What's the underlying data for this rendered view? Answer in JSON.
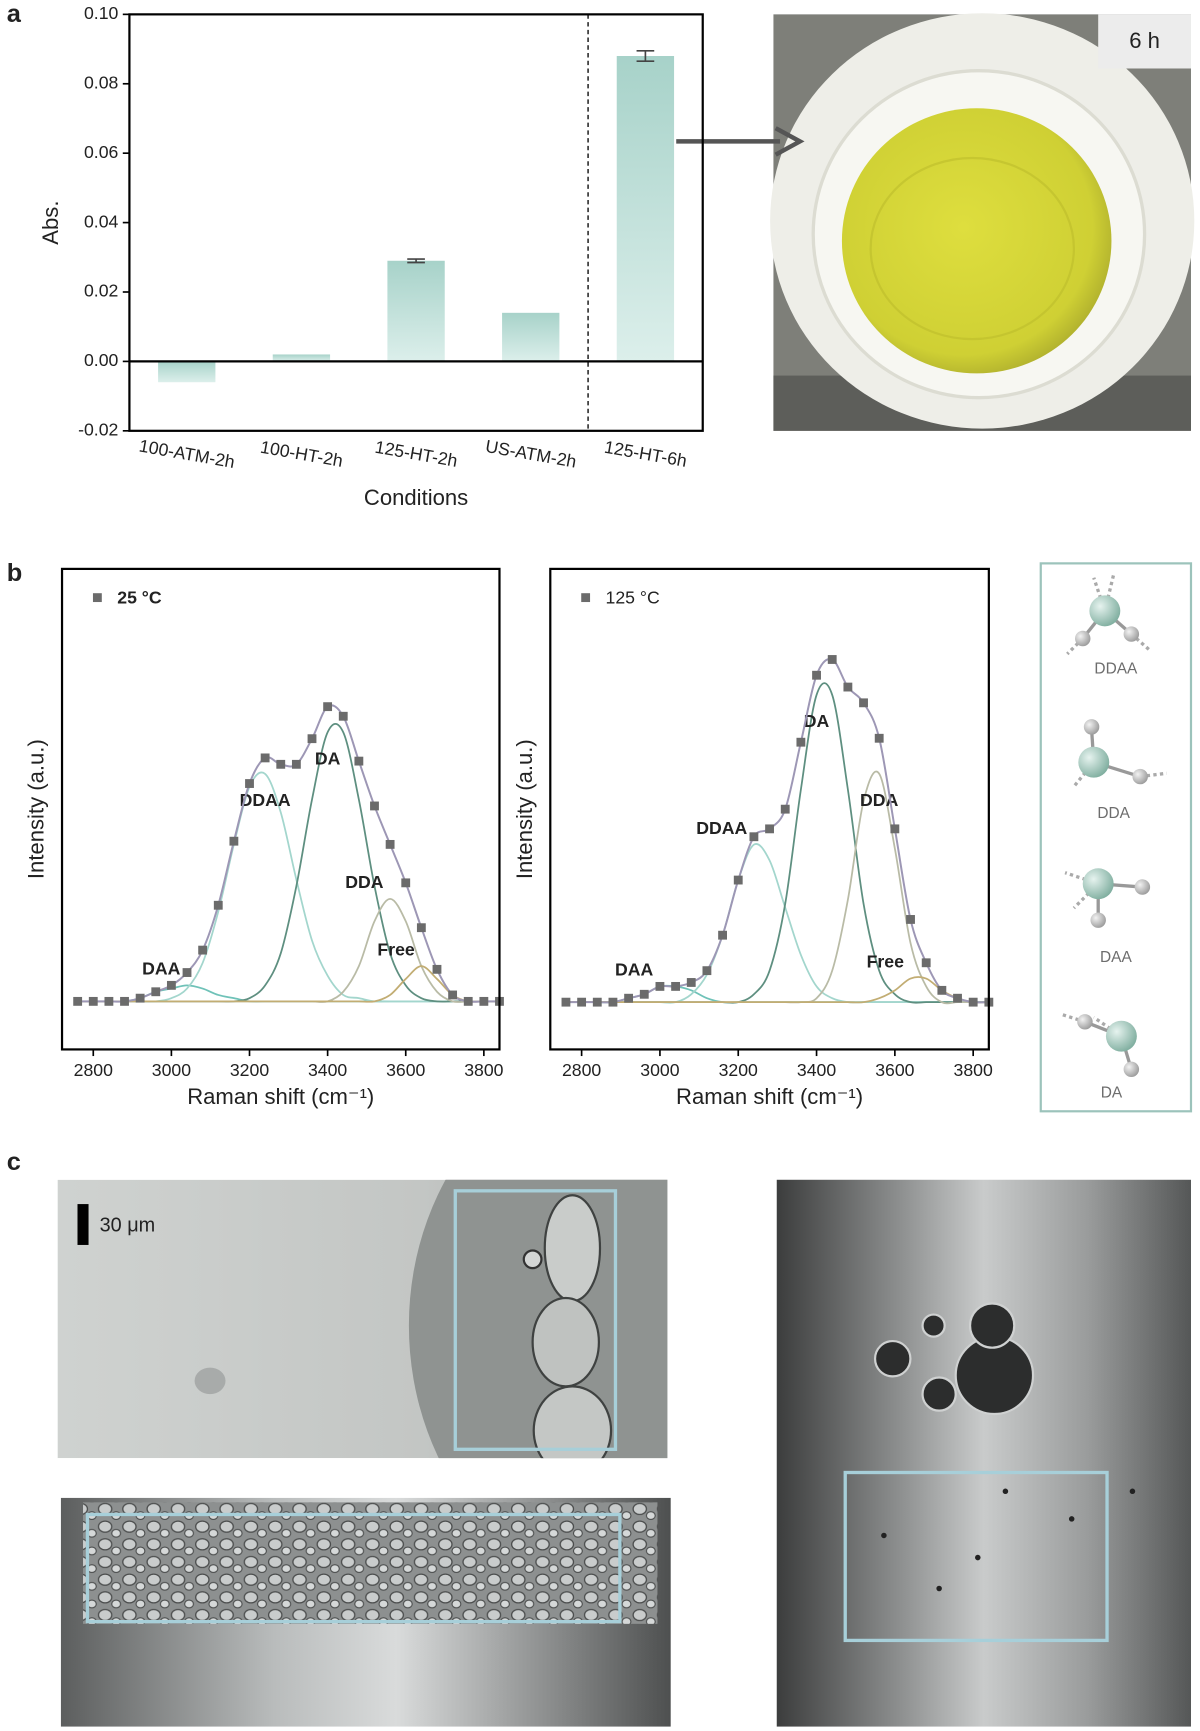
{
  "panel_labels": [
    "a",
    "b",
    "c"
  ],
  "chart_data": [
    {
      "type": "bar",
      "xlabel": "Conditions",
      "ylabel": "Abs.",
      "categories": [
        "100-ATM-2h",
        "100-HT-2h",
        "125-HT-2h",
        "US-ATM-2h",
        "125-HT-6h"
      ],
      "values": [
        -0.006,
        0.002,
        0.029,
        0.014,
        0.088
      ],
      "errors": [
        null,
        null,
        0.0005,
        null,
        0.0015
      ],
      "color": "#b9ddd6",
      "ylim": [
        -0.02,
        0.1
      ],
      "yticks": [
        -0.02,
        {
          "value": 0,
          "label": "0.00"
        },
        0.02,
        0.04,
        0.06,
        0.08,
        {
          "value": 0.1,
          "label": "0.10"
        }
      ]
    },
    {
      "type": "line",
      "xlabel": "Raman shift (cm⁻¹)",
      "ylabel": "Intensity (a.u.)",
      "x": [
        2760,
        2800,
        2840,
        2880,
        2920,
        2960,
        3000,
        3040,
        3080,
        3120,
        3160,
        3200,
        3240,
        3280,
        3320,
        3360,
        3400,
        3440,
        3480,
        3520,
        3560,
        3600,
        3640,
        3680,
        3720,
        3760,
        3800,
        3840
      ],
      "xlim": [
        2720,
        3840
      ],
      "xticks": [
        2800,
        3000,
        3200,
        3400,
        3600,
        3800
      ],
      "ylim": [
        -0.15,
        1.35
      ],
      "series": [
        {
          "name": "25 °C",
          "color": "#6b6b6b",
          "values": [
            0,
            0,
            0,
            0,
            0.01,
            0.03,
            0.05,
            0.09,
            0.16,
            0.3,
            0.5,
            0.68,
            0.76,
            0.74,
            0.74,
            0.82,
            0.92,
            0.89,
            0.75,
            0.61,
            0.49,
            0.37,
            0.23,
            0.1,
            0.02,
            0,
            0,
            0
          ]
        },
        {
          "name": "DAA",
          "color": "#6fc2b8",
          "values": [
            0,
            0,
            0,
            0,
            0.01,
            0.03,
            0.04,
            0.05,
            0.04,
            0.02,
            0.01,
            0,
            0,
            0,
            0,
            0,
            0,
            0,
            0,
            0,
            0,
            0,
            0,
            0,
            0,
            0,
            0,
            0
          ]
        },
        {
          "name": "DDAA",
          "color": "#a3d6cd",
          "values": [
            0,
            0,
            0,
            0,
            0,
            0,
            0.01,
            0.04,
            0.12,
            0.28,
            0.49,
            0.67,
            0.71,
            0.59,
            0.38,
            0.19,
            0.08,
            0.02,
            0.01,
            0,
            0,
            0,
            0,
            0,
            0,
            0,
            0,
            0
          ]
        },
        {
          "name": "DA",
          "color": "#5e8f80",
          "values": [
            0,
            0,
            0,
            0,
            0,
            0,
            0,
            0,
            0,
            0,
            0,
            0.01,
            0.05,
            0.15,
            0.36,
            0.63,
            0.84,
            0.84,
            0.63,
            0.36,
            0.15,
            0.05,
            0.01,
            0,
            0,
            0,
            0,
            0
          ]
        },
        {
          "name": "DDA",
          "color": "#b9bba6",
          "values": [
            0,
            0,
            0,
            0,
            0,
            0,
            0,
            0,
            0,
            0,
            0,
            0,
            0,
            0,
            0,
            0,
            0,
            0.03,
            0.11,
            0.25,
            0.32,
            0.25,
            0.11,
            0.03,
            0,
            0,
            0,
            0
          ]
        },
        {
          "name": "Free",
          "color": "#c2ad73",
          "values": [
            0,
            0,
            0,
            0,
            0,
            0,
            0,
            0,
            0,
            0,
            0,
            0,
            0,
            0,
            0,
            0,
            0,
            0,
            0,
            0,
            0.02,
            0.07,
            0.11,
            0.07,
            0.02,
            0,
            0,
            0
          ]
        }
      ]
    },
    {
      "type": "line",
      "xlabel": "Raman shift (cm⁻¹)",
      "ylabel": "Intensity (a.u.)",
      "x": [
        2760,
        2800,
        2840,
        2880,
        2920,
        2960,
        3000,
        3040,
        3080,
        3120,
        3160,
        3200,
        3240,
        3280,
        3320,
        3360,
        3400,
        3440,
        3480,
        3520,
        3560,
        3600,
        3640,
        3680,
        3720,
        3760,
        3800,
        3840
      ],
      "xlim": [
        2720,
        3840
      ],
      "xticks": [
        2800,
        3000,
        3200,
        3400,
        3600,
        3800
      ],
      "ylim": [
        -0.12,
        1.1
      ],
      "series": [
        {
          "name": "125 °C",
          "color": "#6b6b6b",
          "values": [
            0,
            0,
            0,
            0,
            0.01,
            0.02,
            0.04,
            0.04,
            0.05,
            0.08,
            0.17,
            0.31,
            0.42,
            0.44,
            0.49,
            0.66,
            0.83,
            0.87,
            0.8,
            0.76,
            0.67,
            0.44,
            0.21,
            0.1,
            0.03,
            0.01,
            0,
            0
          ]
        },
        {
          "name": "DAA",
          "color": "#6fc2b8",
          "values": [
            0,
            0,
            0,
            0,
            0.01,
            0.02,
            0.04,
            0.04,
            0.03,
            0.01,
            0,
            0,
            0,
            0,
            0,
            0,
            0,
            0,
            0,
            0,
            0,
            0,
            0,
            0,
            0,
            0,
            0,
            0
          ]
        },
        {
          "name": "DDAA",
          "color": "#a3d6cd",
          "values": [
            0,
            0,
            0,
            0,
            0,
            0,
            0,
            0,
            0.02,
            0.07,
            0.17,
            0.31,
            0.4,
            0.36,
            0.24,
            0.12,
            0.04,
            0.01,
            0,
            0,
            0,
            0,
            0,
            0,
            0,
            0,
            0,
            0
          ]
        },
        {
          "name": "DA",
          "color": "#5e8f80",
          "values": [
            0,
            0,
            0,
            0,
            0,
            0,
            0,
            0,
            0,
            0,
            0,
            0,
            0.02,
            0.08,
            0.25,
            0.54,
            0.78,
            0.78,
            0.54,
            0.25,
            0.08,
            0.02,
            0,
            0,
            0,
            0,
            0,
            0
          ]
        },
        {
          "name": "DDA",
          "color": "#b9bba6",
          "values": [
            0,
            0,
            0,
            0,
            0,
            0,
            0,
            0,
            0,
            0,
            0,
            0,
            0,
            0,
            0,
            0,
            0.01,
            0.08,
            0.26,
            0.51,
            0.58,
            0.39,
            0.15,
            0.04,
            0,
            0,
            0,
            0
          ]
        },
        {
          "name": "Free",
          "color": "#c2ad73",
          "values": [
            0,
            0,
            0,
            0,
            0,
            0,
            0,
            0,
            0,
            0,
            0,
            0,
            0,
            0,
            0,
            0,
            0,
            0,
            0,
            0,
            0.01,
            0.03,
            0.06,
            0.06,
            0.03,
            0.01,
            0,
            0
          ]
        }
      ]
    }
  ],
  "photo_label": "6 h",
  "structures": [
    "DDAA",
    "DDA",
    "DAA",
    "DA"
  ],
  "scale_bar": "30 μm"
}
